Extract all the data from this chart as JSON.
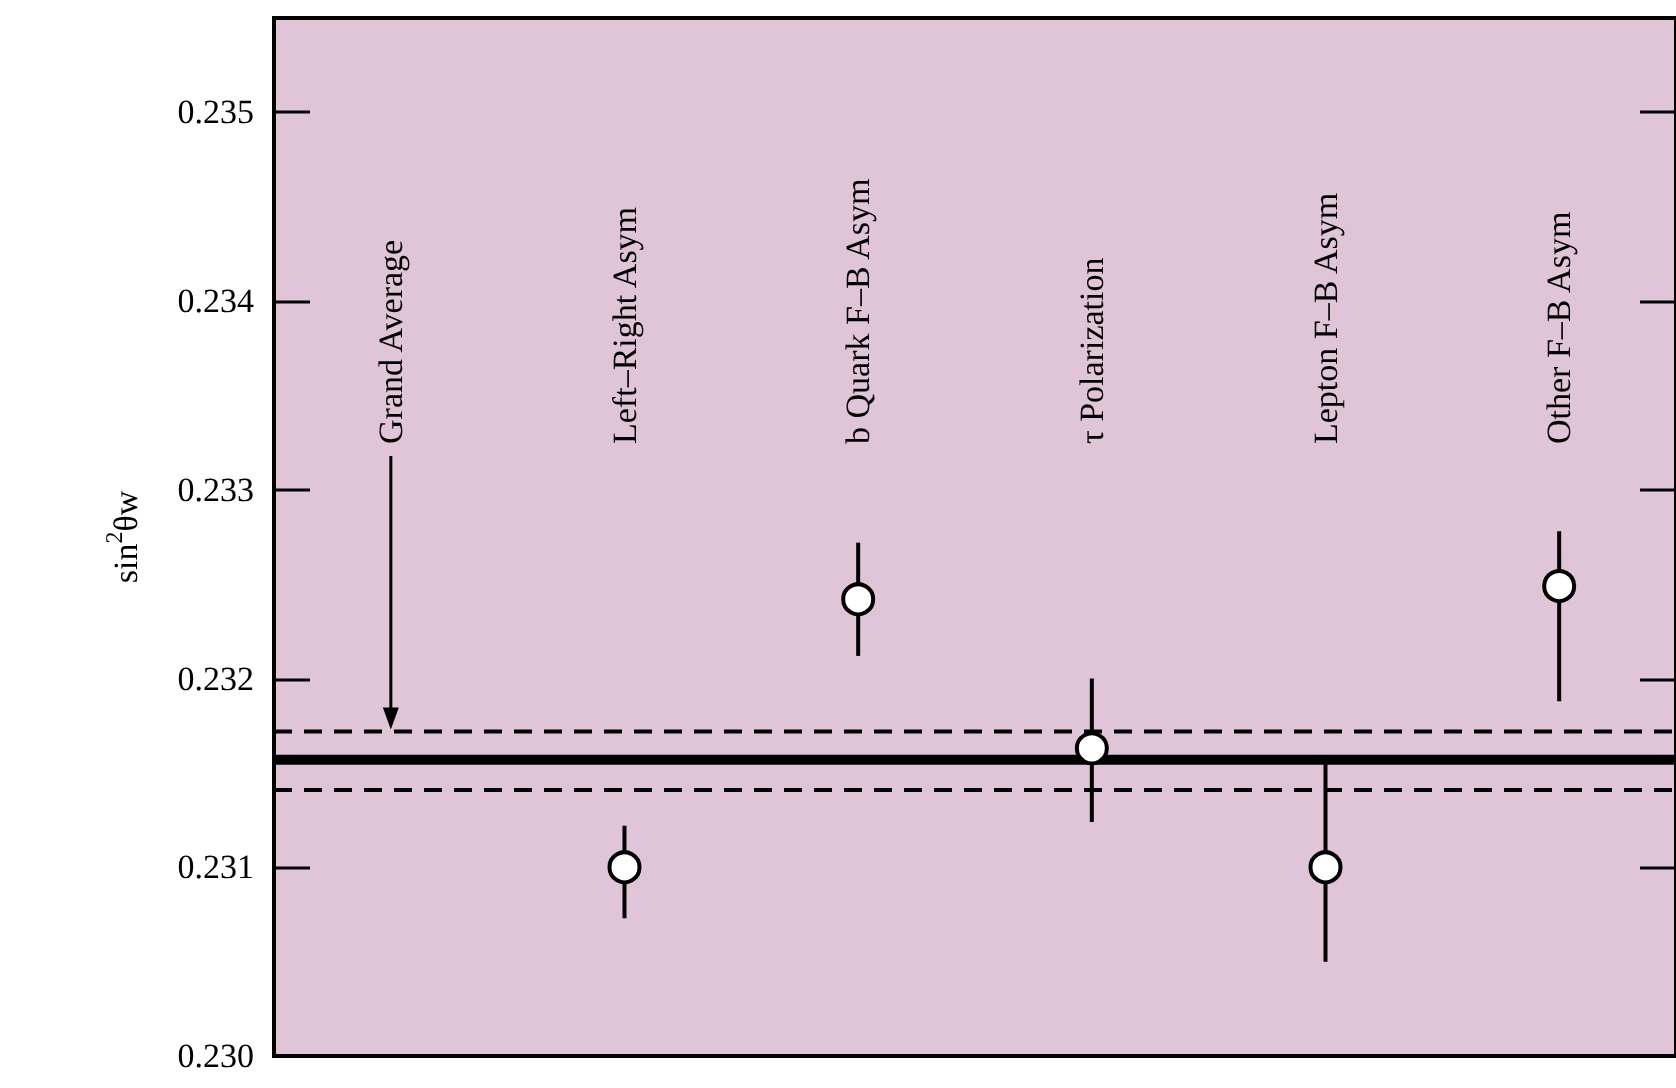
{
  "chart_data": {
    "type": "scatter",
    "ylabel": "sin$^{2}$θw",
    "categories": [
      "Grand Average",
      "Left–Right Asym",
      "b Quark F–B Asym",
      "τ Polarization",
      "Lepton F–B Asym",
      "Other F–B Asym"
    ],
    "series": [
      {
        "color": "#ffffff",
        "values": [
          null,
          0.231,
          0.23242,
          0.23163,
          0.231,
          0.23249
        ],
        "errors": [
          null,
          [
            0.23073,
            0.23122
          ],
          [
            0.23212,
            0.23272
          ],
          [
            0.23124,
            0.232
          ],
          [
            0.2305,
            0.23155
          ],
          [
            0.23188,
            0.23278
          ]
        ]
      }
    ],
    "ylim": [
      0.23,
      0.2355
    ],
    "yticks": [
      {
        "value": 0.23,
        "label": "0.230"
      },
      {
        "value": 0.231,
        "label": "0.231"
      },
      {
        "value": 0.232,
        "label": "0.232"
      },
      {
        "value": 0.233,
        "label": "0.233"
      },
      {
        "value": 0.234,
        "label": "0.234"
      },
      {
        "value": 0.235,
        "label": "0.235"
      }
    ],
    "ref_lines": [
      {
        "axis": "y",
        "value": 0.23157,
        "line_style": "solid",
        "color": "#000000"
      },
      {
        "axis": "y",
        "value": 0.23172,
        "line_style": "dashed",
        "color": "#000000"
      },
      {
        "axis": "y",
        "value": 0.23141,
        "line_style": "dashed",
        "color": "#000000"
      }
    ],
    "marker": "circle",
    "grid": false
  }
}
